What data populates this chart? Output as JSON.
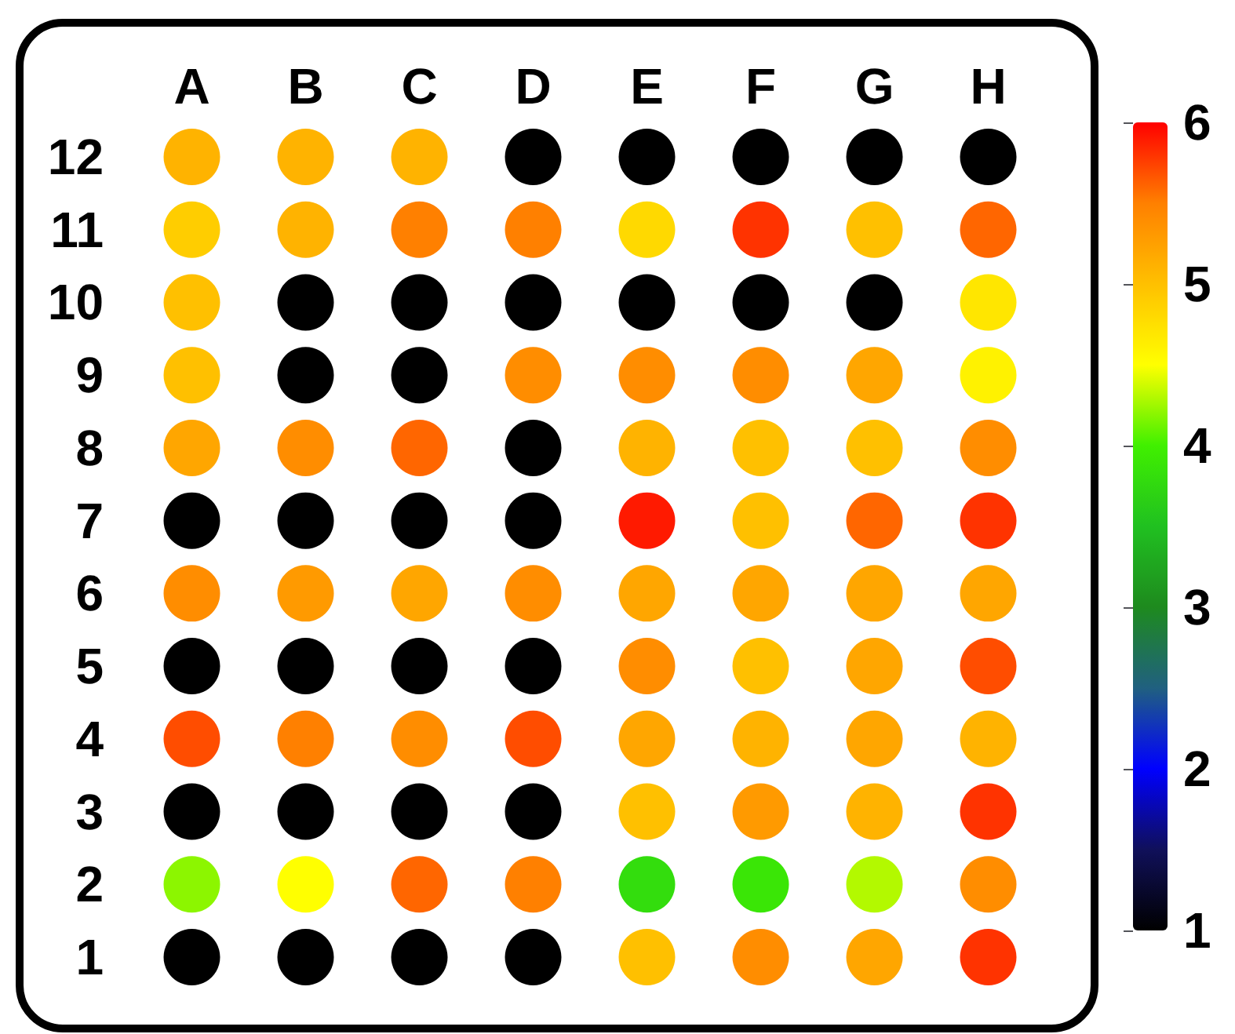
{
  "chart_data": {
    "type": "scatter",
    "marker": "circle",
    "categories": [
      "A",
      "B",
      "C",
      "D",
      "E",
      "F",
      "G",
      "H"
    ],
    "ylim": [
      1,
      12
    ],
    "yticks": [
      1,
      2,
      3,
      4,
      5,
      6,
      7,
      8,
      9,
      10,
      11,
      12
    ],
    "series": [
      {
        "x": [
          "A",
          "B",
          "C",
          "D",
          "E",
          "F",
          "G",
          "H",
          "A",
          "B",
          "C",
          "D",
          "E",
          "F",
          "G",
          "H",
          "A",
          "B",
          "C",
          "D",
          "E",
          "F",
          "G",
          "H",
          "A",
          "B",
          "C",
          "D",
          "E",
          "F",
          "G",
          "H",
          "A",
          "B",
          "C",
          "D",
          "E",
          "F",
          "G",
          "H",
          "A",
          "B",
          "C",
          "D",
          "E",
          "F",
          "G",
          "H",
          "A",
          "B",
          "C",
          "D",
          "E",
          "F",
          "G",
          "H",
          "A",
          "B",
          "C",
          "D",
          "E",
          "F",
          "G",
          "H",
          "A",
          "B",
          "C",
          "D",
          "E",
          "F",
          "G",
          "H",
          "A",
          "B",
          "C",
          "D",
          "E",
          "F",
          "G",
          "H",
          "A",
          "B",
          "C",
          "D",
          "E",
          "F",
          "G",
          "H",
          "A",
          "B",
          "C",
          "D",
          "E",
          "F",
          "G",
          "H"
        ],
        "values": [
          12,
          12,
          12,
          12,
          12,
          12,
          12,
          12,
          11,
          11,
          11,
          11,
          11,
          11,
          11,
          11,
          10,
          10,
          10,
          10,
          10,
          10,
          10,
          10,
          9,
          9,
          9,
          9,
          9,
          9,
          9,
          9,
          8,
          8,
          8,
          8,
          8,
          8,
          8,
          8,
          7,
          7,
          7,
          7,
          7,
          7,
          7,
          7,
          6,
          6,
          6,
          6,
          6,
          6,
          6,
          6,
          5,
          5,
          5,
          5,
          5,
          5,
          5,
          5,
          4,
          4,
          4,
          4,
          4,
          4,
          4,
          4,
          3,
          3,
          3,
          3,
          3,
          3,
          3,
          3,
          2,
          2,
          2,
          2,
          2,
          2,
          2,
          2,
          1,
          1,
          1,
          1,
          1,
          1,
          1,
          1
        ],
        "cvalues": [
          5.1,
          5.1,
          5.1,
          1,
          1,
          1,
          1,
          1,
          4.9,
          5.1,
          5.5,
          5.5,
          4.8,
          5.8,
          5.0,
          5.6,
          5.0,
          1,
          1,
          1,
          1,
          1,
          1,
          4.7,
          5.0,
          1,
          1,
          5.4,
          5.4,
          5.4,
          5.2,
          4.6,
          5.2,
          5.4,
          5.6,
          1,
          5.1,
          5.0,
          5.0,
          5.4,
          1,
          1,
          1,
          1,
          5.9,
          5.0,
          5.6,
          5.8,
          5.4,
          5.3,
          5.2,
          5.4,
          5.2,
          5.2,
          5.2,
          5.2,
          1,
          1,
          1,
          1,
          5.4,
          5.0,
          5.2,
          5.7,
          5.7,
          5.5,
          5.4,
          5.7,
          5.2,
          5.1,
          5.2,
          5.1,
          1,
          1,
          1,
          1,
          5.0,
          5.3,
          5.1,
          5.8,
          4.2,
          4.5,
          5.6,
          5.5,
          3.8,
          3.9,
          4.3,
          5.4,
          1,
          1,
          1,
          1,
          5.0,
          5.4,
          5.2,
          5.8
        ]
      }
    ],
    "clim": [
      1,
      6
    ],
    "cticks": [
      1,
      2,
      3,
      4,
      5,
      6
    ]
  }
}
